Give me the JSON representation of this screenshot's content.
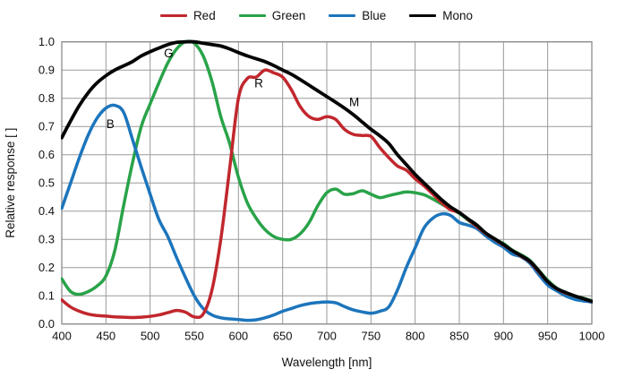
{
  "chart_data": {
    "type": "line",
    "title": "",
    "xlabel": "Wavelength [nm]",
    "ylabel": "Relative response [ ]",
    "xlim": [
      400,
      1000
    ],
    "ylim": [
      0.0,
      1.0
    ],
    "x_ticks": [
      400,
      450,
      500,
      550,
      600,
      650,
      700,
      750,
      800,
      850,
      900,
      950,
      1000
    ],
    "y_ticks": [
      0.0,
      0.1,
      0.2,
      0.3,
      0.4,
      0.5,
      0.6,
      0.7,
      0.8,
      0.9,
      1.0
    ],
    "grid": true,
    "legend_position": "top-center",
    "colors": {
      "red": "#c1272d",
      "green": "#29a349",
      "blue": "#1c75bc",
      "mono": "#050505",
      "gridline": "#9a9a9a",
      "frame": "#8c8c8c"
    },
    "x": [
      400,
      410,
      420,
      430,
      440,
      450,
      460,
      470,
      480,
      490,
      500,
      510,
      520,
      530,
      540,
      550,
      560,
      570,
      580,
      590,
      600,
      610,
      620,
      630,
      640,
      650,
      660,
      670,
      680,
      690,
      700,
      710,
      720,
      730,
      740,
      750,
      760,
      770,
      780,
      790,
      800,
      810,
      820,
      830,
      840,
      850,
      860,
      870,
      880,
      890,
      900,
      910,
      920,
      930,
      940,
      950,
      960,
      970,
      980,
      990,
      1000
    ],
    "series": [
      {
        "name": "Red",
        "color": "#c1272d",
        "annotation": "R",
        "annotation_at": [
          623,
          0.838
        ],
        "values": [
          0.085,
          0.06,
          0.045,
          0.035,
          0.03,
          0.028,
          0.025,
          0.024,
          0.023,
          0.024,
          0.027,
          0.032,
          0.04,
          0.048,
          0.042,
          0.025,
          0.035,
          0.12,
          0.3,
          0.55,
          0.8,
          0.87,
          0.875,
          0.9,
          0.89,
          0.875,
          0.83,
          0.77,
          0.735,
          0.725,
          0.735,
          0.725,
          0.69,
          0.672,
          0.668,
          0.665,
          0.625,
          0.59,
          0.56,
          0.545,
          0.515,
          0.49,
          0.46,
          0.43,
          0.405,
          0.395,
          0.37,
          0.345,
          0.32,
          0.3,
          0.28,
          0.26,
          0.24,
          0.22,
          0.185,
          0.15,
          0.125,
          0.11,
          0.1,
          0.09,
          0.08
        ]
      },
      {
        "name": "Green",
        "color": "#29a349",
        "annotation": "G",
        "annotation_at": [
          521,
          0.945
        ],
        "values": [
          0.16,
          0.115,
          0.105,
          0.115,
          0.135,
          0.17,
          0.26,
          0.42,
          0.57,
          0.7,
          0.78,
          0.855,
          0.925,
          0.975,
          1.0,
          0.995,
          0.95,
          0.86,
          0.735,
          0.64,
          0.52,
          0.43,
          0.375,
          0.335,
          0.31,
          0.3,
          0.3,
          0.32,
          0.36,
          0.42,
          0.465,
          0.478,
          0.46,
          0.462,
          0.472,
          0.46,
          0.448,
          0.455,
          0.462,
          0.468,
          0.465,
          0.458,
          0.443,
          0.425,
          0.408,
          0.392,
          0.368,
          0.345,
          0.318,
          0.3,
          0.285,
          0.262,
          0.245,
          0.225,
          0.19,
          0.155,
          0.128,
          0.112,
          0.1,
          0.092,
          0.082
        ]
      },
      {
        "name": "Blue",
        "color": "#1c75bc",
        "annotation": "B",
        "annotation_at": [
          455,
          0.695
        ],
        "values": [
          0.41,
          0.5,
          0.59,
          0.67,
          0.73,
          0.765,
          0.775,
          0.75,
          0.655,
          0.555,
          0.46,
          0.37,
          0.31,
          0.235,
          0.165,
          0.1,
          0.055,
          0.032,
          0.022,
          0.018,
          0.016,
          0.013,
          0.015,
          0.022,
          0.032,
          0.045,
          0.055,
          0.065,
          0.072,
          0.076,
          0.078,
          0.075,
          0.062,
          0.05,
          0.043,
          0.038,
          0.045,
          0.06,
          0.12,
          0.2,
          0.27,
          0.34,
          0.375,
          0.39,
          0.385,
          0.36,
          0.35,
          0.338,
          0.312,
          0.29,
          0.272,
          0.248,
          0.238,
          0.215,
          0.175,
          0.138,
          0.118,
          0.1,
          0.088,
          0.082,
          0.078
        ]
      },
      {
        "name": "Mono",
        "color": "#050505",
        "annotation": "M",
        "annotation_at": [
          731,
          0.772
        ],
        "values": [
          0.66,
          0.72,
          0.775,
          0.82,
          0.855,
          0.88,
          0.9,
          0.915,
          0.93,
          0.95,
          0.965,
          0.978,
          0.99,
          0.998,
          1.0,
          1.0,
          0.995,
          0.99,
          0.985,
          0.975,
          0.962,
          0.95,
          0.94,
          0.93,
          0.916,
          0.9,
          0.885,
          0.866,
          0.846,
          0.826,
          0.806,
          0.786,
          0.765,
          0.742,
          0.716,
          0.69,
          0.667,
          0.64,
          0.6,
          0.565,
          0.53,
          0.5,
          0.47,
          0.44,
          0.415,
          0.395,
          0.372,
          0.35,
          0.322,
          0.302,
          0.282,
          0.26,
          0.242,
          0.222,
          0.188,
          0.15,
          0.126,
          0.112,
          0.1,
          0.09,
          0.08
        ]
      }
    ]
  }
}
